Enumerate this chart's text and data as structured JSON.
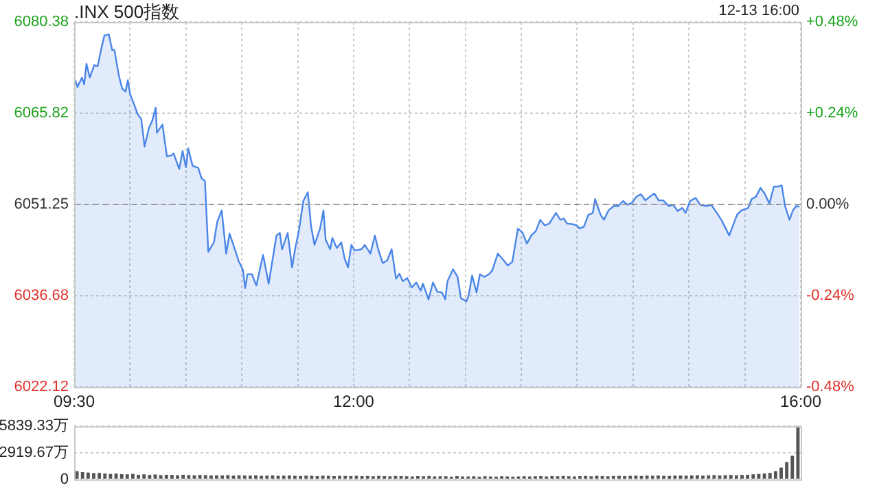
{
  "chart_data": [
    {
      "type": "area",
      "title": ".INX 500指数",
      "subtitle": "12-13 16:00",
      "x": [
        9.51,
        9.53,
        9.57,
        9.59,
        9.61,
        9.64,
        9.68,
        9.71,
        9.74,
        9.77,
        9.81,
        9.84,
        9.86,
        9.9,
        9.93,
        9.96,
        9.98,
        10.0,
        10.03,
        10.07,
        10.1,
        10.13,
        10.17,
        10.2,
        10.23,
        10.24,
        10.29,
        10.33,
        10.37,
        10.39,
        10.44,
        10.47,
        10.5,
        10.52,
        10.56,
        10.61,
        10.64,
        10.67,
        10.7,
        10.75,
        10.78,
        10.82,
        10.86,
        10.89,
        10.93,
        10.97,
        11.01,
        11.03,
        11.05,
        11.09,
        11.13,
        11.19,
        11.24,
        11.31,
        11.34,
        11.36,
        11.41,
        11.45,
        11.48,
        11.51,
        11.55,
        11.59,
        11.62,
        11.65,
        11.7,
        11.73,
        11.75,
        11.79,
        11.81,
        11.85,
        11.89,
        11.92,
        11.95,
        11.98,
        12.01,
        12.07,
        12.1,
        12.15,
        12.19,
        12.22,
        12.26,
        12.3,
        12.34,
        12.38,
        12.41,
        12.44,
        12.48,
        12.52,
        12.56,
        12.6,
        12.62,
        12.67,
        12.71,
        12.75,
        12.79,
        12.82,
        12.84,
        12.89,
        12.93,
        12.96,
        13.01,
        13.03,
        13.06,
        13.1,
        13.13,
        13.17,
        13.21,
        13.24,
        13.29,
        13.33,
        13.38,
        13.42,
        13.47,
        13.51,
        13.55,
        13.59,
        13.63,
        13.67,
        13.71,
        13.75,
        13.81,
        13.85,
        13.88,
        13.91,
        13.96,
        14.0,
        14.02,
        14.06,
        14.1,
        14.14,
        14.16,
        14.21,
        14.24,
        14.28,
        14.33,
        14.37,
        14.41,
        14.45,
        14.49,
        14.53,
        14.57,
        14.61,
        14.65,
        14.69,
        14.73,
        14.77,
        14.82,
        14.86,
        14.9,
        14.94,
        14.97,
        15.01,
        15.06,
        15.1,
        15.16,
        15.2,
        15.25,
        15.29,
        15.33,
        15.36,
        15.39,
        15.43,
        15.47,
        15.53,
        15.56,
        15.6,
        15.64,
        15.68,
        15.72,
        15.76,
        15.8,
        15.83,
        15.86,
        15.9,
        15.93,
        15.96,
        15.99
      ],
      "series": [
        {
          "color": "#4a86e8",
          "values": [
            6071.1,
            6070.0,
            6071.5,
            6070.4,
            6073.7,
            6071.5,
            6073.5,
            6073.3,
            6075.9,
            6078.2,
            6078.4,
            6075.9,
            6075.9,
            6071.8,
            6069.7,
            6069.3,
            6071.1,
            6068.9,
            6067.5,
            6065.6,
            6064.9,
            6060.5,
            6063.5,
            6064.7,
            6066.7,
            6062.7,
            6064.0,
            6058.9,
            6059.1,
            6059.4,
            6056.9,
            6059.8,
            6057.2,
            6060.2,
            6057.4,
            6057.1,
            6055.4,
            6055.0,
            6043.7,
            6045.2,
            6048.5,
            6050.3,
            6043.4,
            6046.6,
            6044.5,
            6042.3,
            6040.8,
            6037.9,
            6040.1,
            6040.1,
            6038.3,
            6043.2,
            6038.6,
            6046.3,
            6046.7,
            6044.1,
            6046.7,
            6041.2,
            6044.5,
            6047.0,
            6051.8,
            6053.2,
            6047.7,
            6044.8,
            6047.4,
            6050.3,
            6045.6,
            6044.1,
            6045.9,
            6044.3,
            6045.2,
            6042.6,
            6041.2,
            6044.8,
            6043.9,
            6044.1,
            6044.8,
            6043.4,
            6046.3,
            6044.1,
            6041.9,
            6042.3,
            6044.1,
            6039.4,
            6040.2,
            6039.0,
            6039.5,
            6038.0,
            6038.8,
            6037.5,
            6038.6,
            6036.1,
            6038.8,
            6037.3,
            6037.2,
            6036.1,
            6039.0,
            6040.9,
            6039.7,
            6036.3,
            6035.8,
            6036.8,
            6039.9,
            6037.2,
            6040.1,
            6039.7,
            6040.1,
            6040.7,
            6043.4,
            6042.6,
            6041.5,
            6042.1,
            6047.4,
            6046.8,
            6045.0,
            6046.3,
            6047.0,
            6048.8,
            6047.9,
            6048.2,
            6049.9,
            6048.8,
            6049.0,
            6048.2,
            6048.1,
            6047.9,
            6047.4,
            6047.7,
            6049.6,
            6049.9,
            6052.1,
            6049.6,
            6048.8,
            6050.3,
            6051.0,
            6051.0,
            6051.8,
            6051.2,
            6051.5,
            6052.5,
            6052.9,
            6051.9,
            6052.5,
            6053.0,
            6051.9,
            6051.9,
            6051.0,
            6051.2,
            6050.2,
            6050.7,
            6049.9,
            6051.8,
            6052.3,
            6051.2,
            6051.0,
            6051.2,
            6049.9,
            6048.8,
            6047.4,
            6046.3,
            6047.7,
            6049.6,
            6050.3,
            6050.7,
            6052.1,
            6052.5,
            6053.9,
            6052.9,
            6051.4,
            6054.1,
            6054.1,
            6054.3,
            6051.0,
            6048.8,
            6050.3,
            6051.0,
            6050.9
          ]
        }
      ],
      "xlim": [
        9.5,
        16
      ],
      "xticks": [
        {
          "value": 9.5,
          "label": "09:30"
        },
        {
          "value": 10,
          "label": null
        },
        {
          "value": 10.5,
          "label": null
        },
        {
          "value": 11,
          "label": null
        },
        {
          "value": 11.5,
          "label": null
        },
        {
          "value": 12,
          "label": "12:00"
        },
        {
          "value": 12.5,
          "label": null
        },
        {
          "value": 13,
          "label": null
        },
        {
          "value": 13.5,
          "label": null
        },
        {
          "value": 14,
          "label": null
        },
        {
          "value": 14.5,
          "label": null
        },
        {
          "value": 15,
          "label": null
        },
        {
          "value": 15.5,
          "label": null
        },
        {
          "value": 16,
          "label": "16:00"
        }
      ],
      "ylim": [
        6022.12,
        6080.38
      ],
      "yticks": [
        6022.12,
        6036.68,
        6051.25,
        6065.82,
        6080.38
      ],
      "y2lim": [
        -0.48,
        0.48
      ],
      "y2ticks": [
        {
          "value": -0.48,
          "label": "-0.48%"
        },
        {
          "value": -0.24,
          "label": "-0.24%"
        },
        {
          "value": 0,
          "label": "0.00%"
        },
        {
          "value": 0.24,
          "label": "+0.24%"
        },
        {
          "value": 0.48,
          "label": "+0.48%"
        }
      ],
      "ref_lines": [
        {
          "axis": "y",
          "value": 6051.25,
          "color": "#999999",
          "line_style": "dashed"
        }
      ],
      "grid": true
    },
    {
      "type": "bar",
      "categories": [
        null,
        null,
        null,
        null,
        null,
        null,
        null,
        null,
        null,
        null,
        null,
        null,
        null,
        null,
        null,
        null,
        null,
        null,
        null,
        null,
        null,
        null,
        null,
        null,
        null,
        null,
        null,
        null,
        null,
        null,
        null,
        null,
        null,
        null,
        null,
        null,
        null,
        null,
        null,
        null,
        null,
        null,
        null,
        null,
        null,
        null,
        null,
        null,
        null,
        null,
        null,
        null,
        null,
        null,
        null,
        null,
        null,
        null,
        null,
        null,
        null,
        null,
        null,
        null,
        null,
        null,
        null,
        null,
        null,
        null,
        null,
        null,
        null,
        null,
        null,
        null,
        null,
        null,
        null,
        null,
        null,
        null,
        null,
        null,
        null,
        null,
        null,
        null,
        null,
        null,
        null,
        null,
        null,
        null,
        null,
        null,
        null,
        null,
        null,
        null,
        null,
        null,
        null,
        null,
        null,
        null,
        null,
        null,
        null,
        null,
        null,
        null,
        null,
        null,
        null,
        null,
        null,
        null,
        null,
        null,
        null,
        null,
        null,
        null,
        null,
        null,
        null,
        null,
        null,
        null
      ],
      "values": [
        900,
        820,
        760,
        700,
        720,
        650,
        600,
        640,
        580,
        560,
        600,
        520,
        560,
        500,
        540,
        480,
        520,
        500,
        460,
        510,
        480,
        450,
        500,
        470,
        430,
        460,
        440,
        480,
        420,
        450,
        430,
        410,
        450,
        400,
        420,
        440,
        390,
        410,
        430,
        400,
        380,
        420,
        400,
        370,
        410,
        390,
        360,
        400,
        380,
        370,
        390,
        360,
        380,
        350,
        400,
        370,
        340,
        380,
        360,
        350,
        330,
        360,
        340,
        380,
        320,
        350,
        340,
        310,
        360,
        330,
        320,
        340,
        300,
        350,
        330,
        310,
        340,
        320,
        300,
        330,
        350,
        320,
        340,
        370,
        330,
        360,
        340,
        380,
        350,
        330,
        360,
        380,
        350,
        390,
        370,
        340,
        380,
        400,
        360,
        390,
        410,
        380,
        420,
        390,
        430,
        400,
        380,
        420,
        440,
        410,
        430,
        460,
        420,
        450,
        480,
        440,
        470,
        500,
        460,
        490,
        520,
        560,
        600,
        650,
        720,
        900,
        1300,
        1900,
        2600,
        5839.33
      ],
      "color": "#555555",
      "ylim": [
        0,
        5839.33
      ],
      "yticks": [
        0,
        {
          "value": 2919.67,
          "label": "2919.67万"
        },
        {
          "value": 5839.33,
          "label": "5839.33万"
        }
      ],
      "grid": "y",
      "tick_labels": "y"
    }
  ]
}
